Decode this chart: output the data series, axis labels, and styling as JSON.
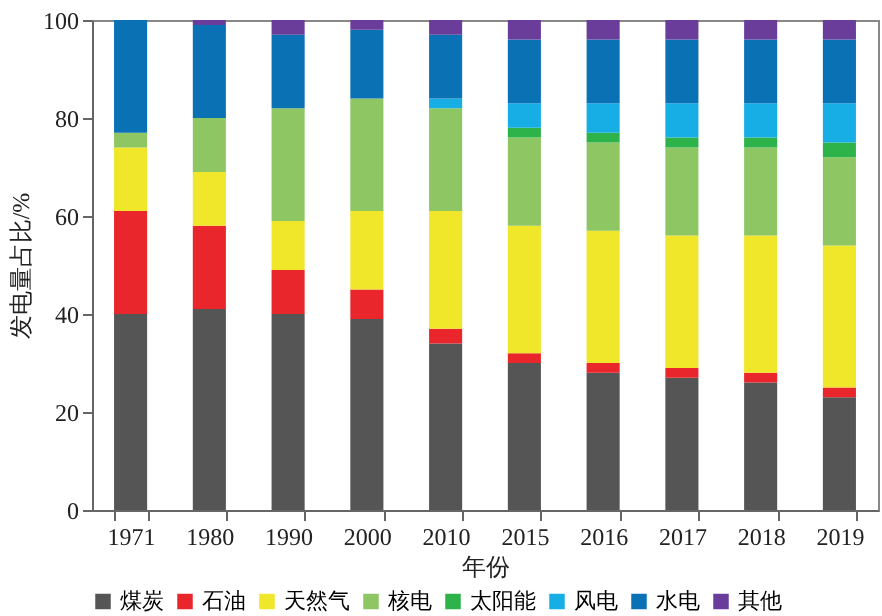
{
  "chart_data": {
    "type": "bar",
    "stacked": true,
    "xlabel": "年份",
    "ylabel": "发电量占比/%",
    "categories": [
      "1971",
      "1980",
      "1990",
      "2000",
      "2010",
      "2015",
      "2016",
      "2017",
      "2018",
      "2019"
    ],
    "series": [
      {
        "name": "煤炭",
        "color": "#555555",
        "values": [
          40,
          41,
          40,
          39,
          34,
          30,
          28,
          27,
          26,
          23
        ]
      },
      {
        "name": "石油",
        "color": "#e8262b",
        "values": [
          21,
          17,
          9,
          6,
          3,
          2,
          2,
          2,
          2,
          2
        ]
      },
      {
        "name": "天然气",
        "color": "#f0e62a",
        "values": [
          13,
          11,
          10,
          16,
          24,
          26,
          27,
          27,
          28,
          29
        ]
      },
      {
        "name": "核电",
        "color": "#8dc663",
        "values": [
          3,
          11,
          23,
          23,
          21,
          18,
          18,
          18,
          18,
          18
        ]
      },
      {
        "name": "太阳能",
        "color": "#2db34a",
        "values": [
          0,
          0,
          0,
          0,
          0,
          2,
          2,
          2,
          2,
          3
        ]
      },
      {
        "name": "风电",
        "color": "#16aee4",
        "values": [
          0,
          0,
          0,
          0,
          2,
          5,
          6,
          7,
          7,
          8
        ]
      },
      {
        "name": "水电",
        "color": "#0a71b5",
        "values": [
          23,
          19,
          15,
          14,
          13,
          13,
          13,
          13,
          13,
          13
        ]
      },
      {
        "name": "其他",
        "color": "#6a3d9a",
        "values": [
          0,
          1,
          3,
          2,
          3,
          4,
          4,
          4,
          4,
          4
        ]
      }
    ],
    "ylim": [
      0,
      100
    ],
    "yticks": [
      0,
      20,
      40,
      60,
      80,
      100
    ],
    "grid": false,
    "legend": "bottom"
  }
}
